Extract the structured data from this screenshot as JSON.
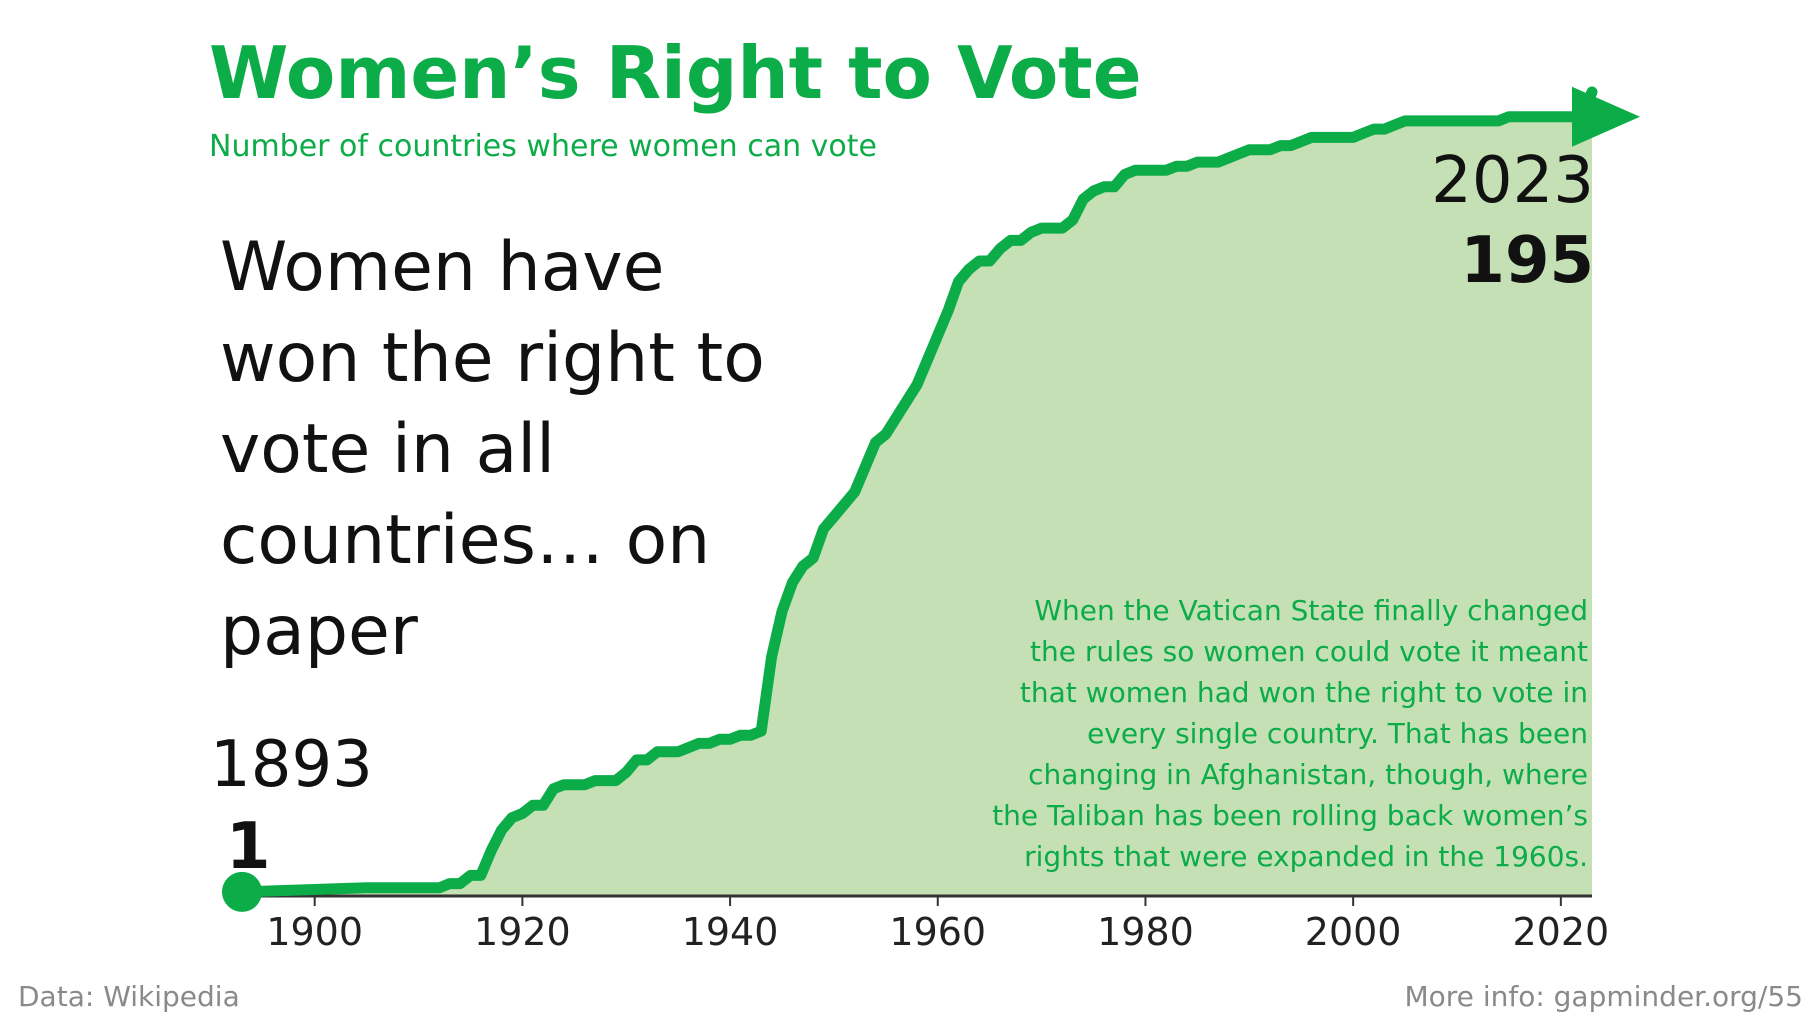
{
  "chart_data": {
    "type": "area",
    "title": "Women’s Right to Vote",
    "subtitle": "Number of countries where women can vote",
    "headline_lines": [
      "Women have",
      "won the right to",
      "vote in all",
      "countries… on",
      "paper"
    ],
    "start_year_label": "1893",
    "start_value_label": "1",
    "end_year_label": "2023",
    "end_value_label": "195",
    "note_lines": [
      "When the Vatican State finally changed",
      "the rules so women could vote it meant",
      "that women had won the right to vote in",
      "every single country. That has been",
      "changing in Afghanistan, though, where",
      "the Taliban has been rolling back women’s",
      "rights that were expanded in the 1960s."
    ],
    "xlim": [
      1893,
      2023
    ],
    "ylim": [
      0,
      195
    ],
    "x_ticks": [
      "1900",
      "1920",
      "1940",
      "1960",
      "1980",
      "2000",
      "2020"
    ],
    "grid": false,
    "colors": {
      "line": "#0cac49",
      "fill": "#c5e0b4",
      "axis": "#333333"
    },
    "x": [
      1893,
      1905,
      1906,
      1912,
      1913,
      1914,
      1915,
      1916,
      1917,
      1918,
      1919,
      1920,
      1921,
      1922,
      1923,
      1924,
      1925,
      1926,
      1927,
      1928,
      1929,
      1930,
      1931,
      1932,
      1933,
      1934,
      1935,
      1936,
      1937,
      1938,
      1939,
      1940,
      1941,
      1942,
      1943,
      1944,
      1945,
      1946,
      1947,
      1948,
      1949,
      1950,
      1951,
      1952,
      1953,
      1954,
      1955,
      1956,
      1957,
      1958,
      1959,
      1960,
      1961,
      1962,
      1963,
      1964,
      1965,
      1966,
      1967,
      1968,
      1969,
      1970,
      1971,
      1972,
      1973,
      1974,
      1975,
      1976,
      1977,
      1978,
      1979,
      1980,
      1981,
      1982,
      1983,
      1984,
      1985,
      1986,
      1987,
      1988,
      1989,
      1990,
      1991,
      1992,
      1993,
      1994,
      1995,
      1996,
      1997,
      1998,
      1999,
      2000,
      2001,
      2002,
      2003,
      2004,
      2005,
      2006,
      2007,
      2008,
      2009,
      2010,
      2011,
      2012,
      2013,
      2014,
      2015,
      2016,
      2017,
      2018,
      2019,
      2020,
      2021,
      2022,
      2023
    ],
    "y": [
      1,
      2,
      2,
      2,
      3,
      3,
      5,
      5,
      11,
      16,
      19,
      20,
      22,
      22,
      26,
      27,
      27,
      27,
      28,
      28,
      28,
      30,
      33,
      33,
      35,
      35,
      35,
      36,
      37,
      37,
      38,
      38,
      39,
      39,
      40,
      58,
      69,
      76,
      80,
      82,
      89,
      92,
      95,
      98,
      104,
      110,
      112,
      116,
      120,
      124,
      130,
      136,
      142,
      149,
      152,
      154,
      154,
      157,
      159,
      159,
      161,
      162,
      162,
      162,
      164,
      169,
      171,
      172,
      172,
      175,
      176,
      176,
      176,
      176,
      177,
      177,
      178,
      178,
      178,
      179,
      180,
      181,
      181,
      181,
      182,
      182,
      183,
      184,
      184,
      184,
      184,
      184,
      185,
      186,
      186,
      187,
      188,
      188,
      188,
      188,
      188,
      188,
      188,
      188,
      188,
      188,
      189,
      189,
      189,
      189,
      189,
      189,
      189,
      189,
      195
    ]
  },
  "source": "Data: Wikipedia",
  "more_info": "More info: gapminder.org/55"
}
